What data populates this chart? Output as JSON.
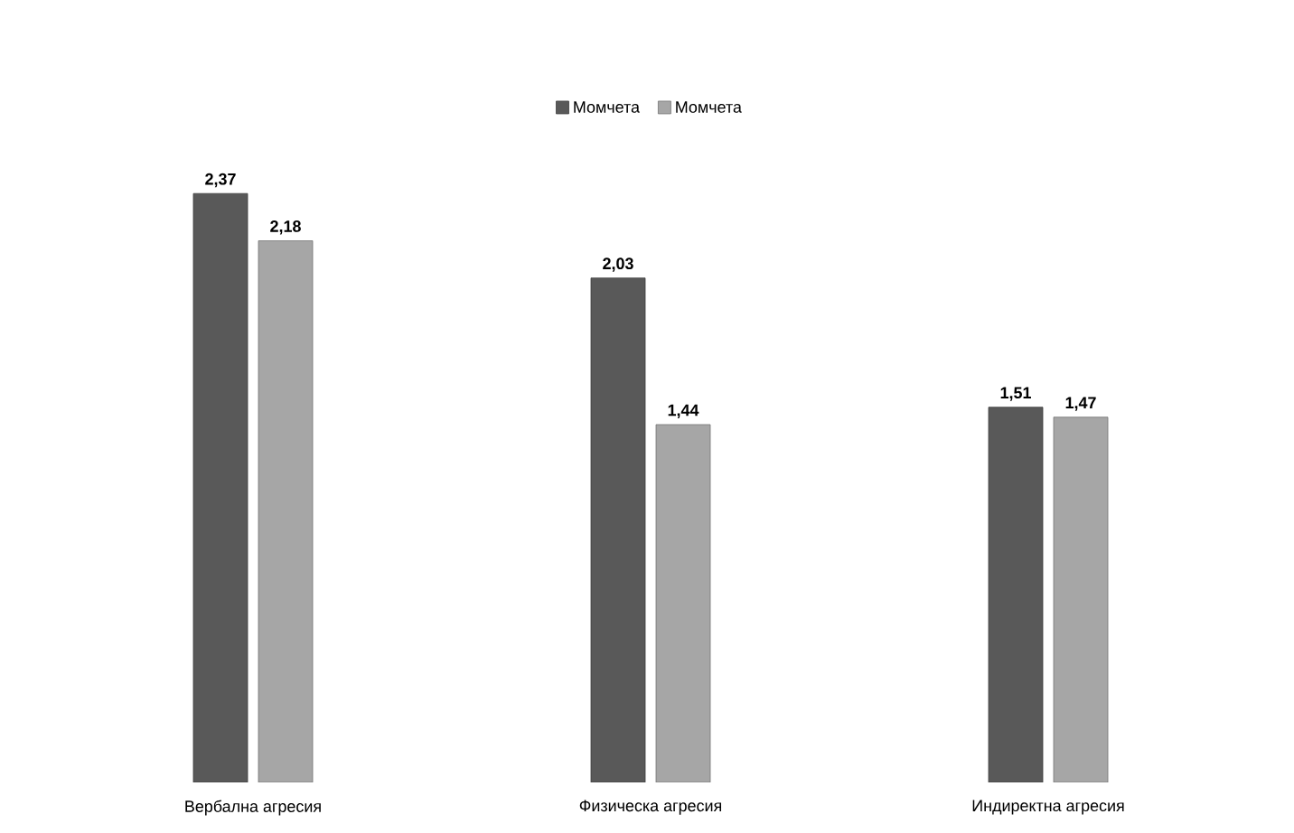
{
  "chart_data": {
    "type": "bar",
    "categories": [
      "Вербална агресия",
      "Физическа агресия",
      "Индиректна агресия"
    ],
    "series": [
      {
        "name": "Момчета",
        "color": "#595959",
        "values": [
          2.37,
          2.03,
          1.51
        ],
        "value_labels": [
          "2,37",
          "2,03",
          "1,51"
        ]
      },
      {
        "name": "Момчета",
        "color": "#a6a6a6",
        "values": [
          2.18,
          1.44,
          1.47
        ],
        "value_labels": [
          "2,18",
          "1,44",
          "1,47"
        ]
      }
    ],
    "legend": "top"
  }
}
